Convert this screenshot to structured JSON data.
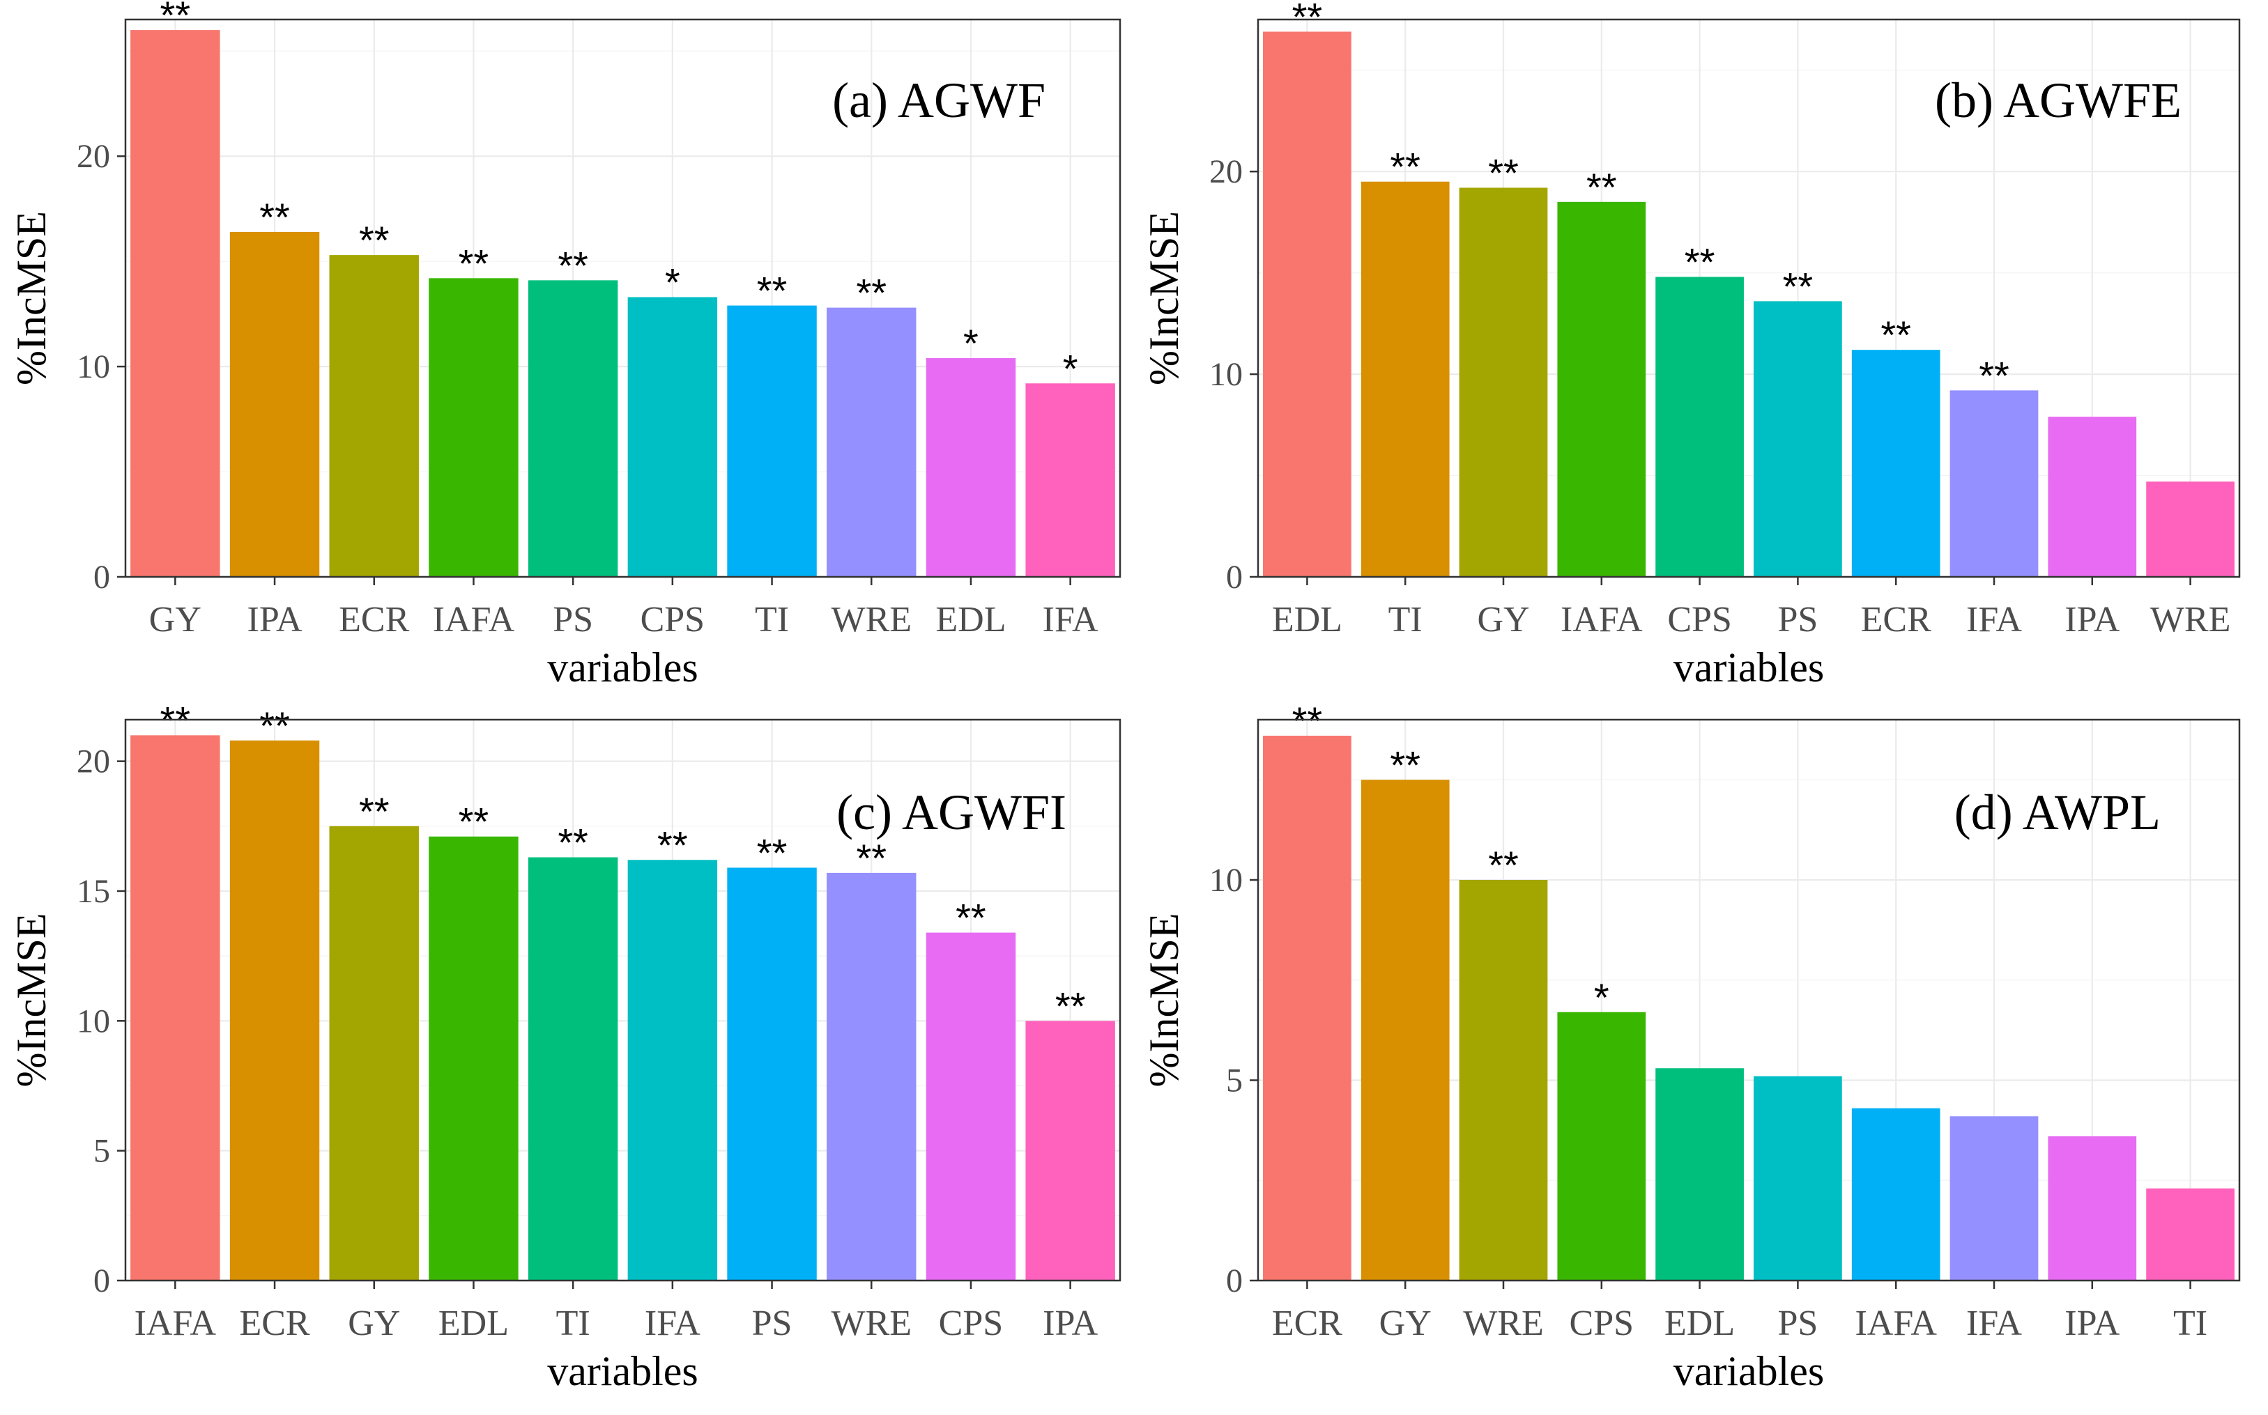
{
  "chart_data": [
    {
      "type": "bar",
      "title": "(a) AGWF",
      "xlabel": "variables",
      "ylabel": "%IncMSE",
      "ylim": [
        0,
        26.5
      ],
      "yticks": [
        0,
        10,
        20
      ],
      "categories": [
        "GY",
        "IPA",
        "ECR",
        "IAFA",
        "PS",
        "CPS",
        "TI",
        "WRE",
        "EDL",
        "IFA"
      ],
      "values": [
        26.0,
        16.4,
        15.3,
        14.2,
        14.1,
        13.3,
        12.9,
        12.8,
        10.4,
        9.2
      ],
      "significance": [
        "**",
        "**",
        "**",
        "**",
        "**",
        "*",
        "**",
        "**",
        "*",
        "*"
      ],
      "colors": [
        "#F8766D",
        "#D89000",
        "#A3A500",
        "#39B600",
        "#00BF7D",
        "#00BFC4",
        "#00B0F6",
        "#9590FF",
        "#E76BF3",
        "#FF62BC"
      ]
    },
    {
      "type": "bar",
      "title": "(b) AGWFE",
      "xlabel": "variables",
      "ylabel": "%IncMSE",
      "ylim": [
        0,
        27.5
      ],
      "yticks": [
        0,
        10,
        20
      ],
      "categories": [
        "EDL",
        "TI",
        "GY",
        "IAFA",
        "CPS",
        "PS",
        "ECR",
        "IFA",
        "IPA",
        "WRE"
      ],
      "values": [
        26.9,
        19.5,
        19.2,
        18.5,
        14.8,
        13.6,
        11.2,
        9.2,
        7.9,
        4.7
      ],
      "significance": [
        "**",
        "**",
        "**",
        "**",
        "**",
        "**",
        "**",
        "**",
        "",
        ""
      ],
      "colors": [
        "#F8766D",
        "#D89000",
        "#A3A500",
        "#39B600",
        "#00BF7D",
        "#00BFC4",
        "#00B0F6",
        "#9590FF",
        "#E76BF3",
        "#FF62BC"
      ]
    },
    {
      "type": "bar",
      "title": "(c) AGWFI",
      "xlabel": "variables",
      "ylabel": "%IncMSE",
      "ylim": [
        0,
        21.6
      ],
      "yticks": [
        0,
        5,
        10,
        15,
        20
      ],
      "categories": [
        "IAFA",
        "ECR",
        "GY",
        "EDL",
        "TI",
        "IFA",
        "PS",
        "WRE",
        "CPS",
        "IPA"
      ],
      "values": [
        21.0,
        20.8,
        17.5,
        17.1,
        16.3,
        16.2,
        15.9,
        15.7,
        13.4,
        10.0
      ],
      "significance": [
        "**",
        "**",
        "**",
        "**",
        "**",
        "**",
        "**",
        "**",
        "**",
        "**"
      ],
      "colors": [
        "#F8766D",
        "#D89000",
        "#A3A500",
        "#39B600",
        "#00BF7D",
        "#00BFC4",
        "#00B0F6",
        "#9590FF",
        "#E76BF3",
        "#FF62BC"
      ]
    },
    {
      "type": "bar",
      "title": "(d) AWPL",
      "xlabel": "variables",
      "ylabel": "%IncMSE",
      "ylim": [
        0,
        14.0
      ],
      "yticks": [
        0,
        5,
        10
      ],
      "categories": [
        "ECR",
        "GY",
        "WRE",
        "CPS",
        "EDL",
        "PS",
        "IAFA",
        "IFA",
        "IPA",
        "TI"
      ],
      "values": [
        13.6,
        12.5,
        10.0,
        6.7,
        5.3,
        5.1,
        4.3,
        4.1,
        3.6,
        2.3
      ],
      "significance": [
        "**",
        "**",
        "**",
        "*",
        "",
        "",
        "",
        "",
        "",
        ""
      ],
      "colors": [
        "#F8766D",
        "#D89000",
        "#A3A500",
        "#39B600",
        "#00BF7D",
        "#00BFC4",
        "#00B0F6",
        "#9590FF",
        "#E76BF3",
        "#FF62BC"
      ]
    }
  ]
}
